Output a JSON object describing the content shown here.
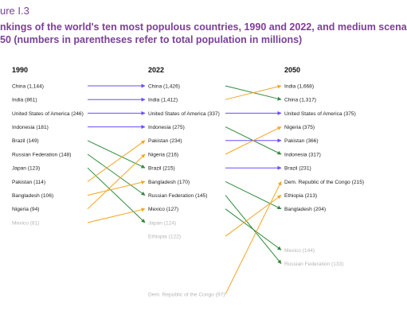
{
  "figure_label": "ure I.3",
  "title": "nkings of the world's ten most populous countries, 1990 and 2022, and medium scena\n50 (numbers in parentheses refer to total population in millions)",
  "colors": {
    "title": "#7b3f98",
    "arrow_same": "#6a4cff",
    "arrow_up": "#f5a623",
    "arrow_down": "#2f8a3a",
    "faded_text": "#b5b5b5"
  },
  "columns": [
    {
      "year": "1990",
      "entries": [
        {
          "label": "China (1,144)",
          "rank": 1
        },
        {
          "label": "India (861)",
          "rank": 2
        },
        {
          "label": "United States of America (246)",
          "rank": 3
        },
        {
          "label": "Indonesia (181)",
          "rank": 4
        },
        {
          "label": "Brazil (149)",
          "rank": 5
        },
        {
          "label": "Russian Federation (148)",
          "rank": 6
        },
        {
          "label": "Japan (123)",
          "rank": 7
        },
        {
          "label": "Pakistan (114)",
          "rank": 8
        },
        {
          "label": "Bangladesh (106)",
          "rank": 9
        },
        {
          "label": "Nigeria (94)",
          "rank": 10
        },
        {
          "label": "Mexico (81)",
          "rank": 11,
          "faded": true
        }
      ]
    },
    {
      "year": "2022",
      "entries": [
        {
          "label": "China (1,426)",
          "rank": 1
        },
        {
          "label": "India (1,412)",
          "rank": 2
        },
        {
          "label": "United States of America (337)",
          "rank": 3
        },
        {
          "label": "Indonesia (275)",
          "rank": 4
        },
        {
          "label": "Pakistan (234)",
          "rank": 5
        },
        {
          "label": "Nigeria (216)",
          "rank": 6
        },
        {
          "label": "Brazil (215)",
          "rank": 7
        },
        {
          "label": "Bangladesh (170)",
          "rank": 8
        },
        {
          "label": "Russian Federation (145)",
          "rank": 9
        },
        {
          "label": "Mexico (127)",
          "rank": 10
        },
        {
          "label": "Japan (124)",
          "rank": 11,
          "faded": true
        },
        {
          "label": "Ethiopia (122)",
          "rank": 12,
          "faded": true
        },
        {
          "label": "Dem. Republic of the Congo (97)",
          "rank": 19,
          "faded": true
        }
      ]
    },
    {
      "year": "2050",
      "entries": [
        {
          "label": "India (1,668)",
          "rank": 1
        },
        {
          "label": "China (1,317)",
          "rank": 2
        },
        {
          "label": "United States of America (375)",
          "rank": 3
        },
        {
          "label": "Nigeria (375)",
          "rank": 4
        },
        {
          "label": "Pakistan (366)",
          "rank": 5
        },
        {
          "label": "Indonesia (317)",
          "rank": 6
        },
        {
          "label": "Brazil (231)",
          "rank": 7
        },
        {
          "label": "Dem. Republic of the Congo (215)",
          "rank": 8
        },
        {
          "label": "Ethiopia (213)",
          "rank": 9
        },
        {
          "label": "Bangladesh (204)",
          "rank": 10
        },
        {
          "label": "Mexico (144)",
          "rank": 13,
          "faded": true
        },
        {
          "label": "Russian Federation (133)",
          "rank": 14,
          "faded": true
        }
      ]
    }
  ],
  "transitions": [
    {
      "from_col": 0,
      "from_rank": 1,
      "to_rank": 1,
      "trend": "same"
    },
    {
      "from_col": 0,
      "from_rank": 2,
      "to_rank": 2,
      "trend": "same"
    },
    {
      "from_col": 0,
      "from_rank": 3,
      "to_rank": 3,
      "trend": "same"
    },
    {
      "from_col": 0,
      "from_rank": 4,
      "to_rank": 4,
      "trend": "same"
    },
    {
      "from_col": 0,
      "from_rank": 5,
      "to_rank": 7,
      "trend": "down"
    },
    {
      "from_col": 0,
      "from_rank": 6,
      "to_rank": 9,
      "trend": "down"
    },
    {
      "from_col": 0,
      "from_rank": 7,
      "to_rank": 11,
      "trend": "down"
    },
    {
      "from_col": 0,
      "from_rank": 8,
      "to_rank": 5,
      "trend": "up"
    },
    {
      "from_col": 0,
      "from_rank": 9,
      "to_rank": 8,
      "trend": "up"
    },
    {
      "from_col": 0,
      "from_rank": 10,
      "to_rank": 6,
      "trend": "up"
    },
    {
      "from_col": 0,
      "from_rank": 11,
      "to_rank": 10,
      "trend": "up"
    },
    {
      "from_col": 1,
      "from_rank": 1,
      "to_rank": 2,
      "trend": "down"
    },
    {
      "from_col": 1,
      "from_rank": 2,
      "to_rank": 1,
      "trend": "up"
    },
    {
      "from_col": 1,
      "from_rank": 3,
      "to_rank": 3,
      "trend": "same"
    },
    {
      "from_col": 1,
      "from_rank": 4,
      "to_rank": 6,
      "trend": "down"
    },
    {
      "from_col": 1,
      "from_rank": 5,
      "to_rank": 5,
      "trend": "same"
    },
    {
      "from_col": 1,
      "from_rank": 6,
      "to_rank": 4,
      "trend": "up"
    },
    {
      "from_col": 1,
      "from_rank": 7,
      "to_rank": 7,
      "trend": "same"
    },
    {
      "from_col": 1,
      "from_rank": 8,
      "to_rank": 10,
      "trend": "down"
    },
    {
      "from_col": 1,
      "from_rank": 9,
      "to_rank": 14,
      "trend": "down"
    },
    {
      "from_col": 1,
      "from_rank": 10,
      "to_rank": 13,
      "trend": "down"
    },
    {
      "from_col": 1,
      "from_rank": 12,
      "to_rank": 9,
      "trend": "up"
    },
    {
      "from_col": 1,
      "from_rank": 19,
      "to_rank": 8,
      "trend": "up"
    }
  ]
}
